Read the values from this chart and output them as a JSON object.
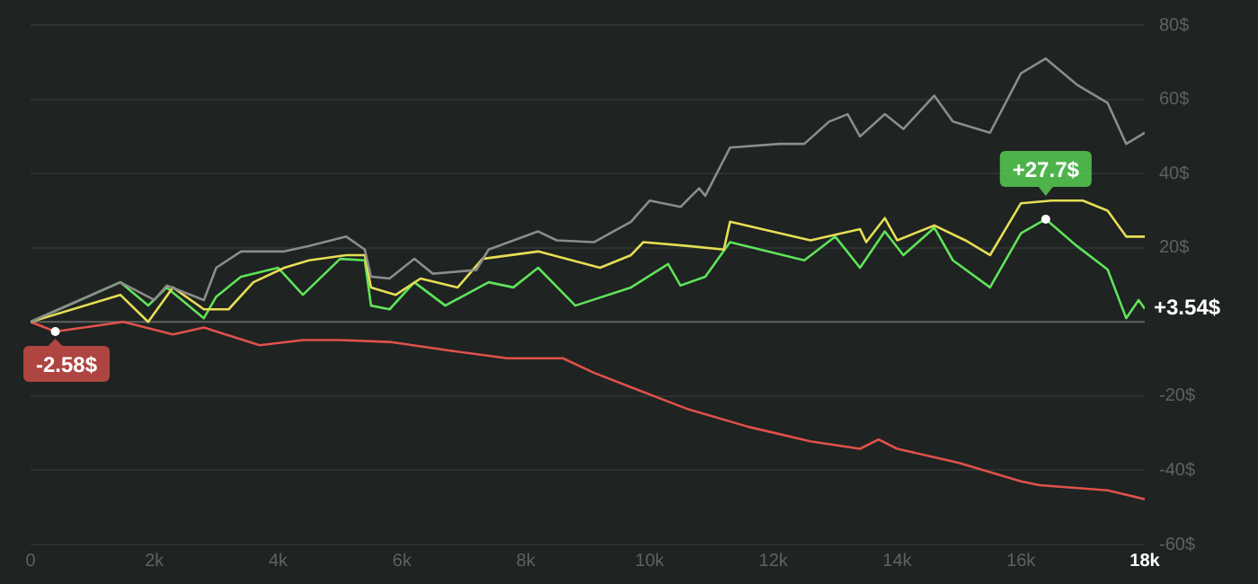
{
  "chart_data": {
    "type": "line",
    "xlim": [
      0,
      18000
    ],
    "ylim": [
      -60,
      80
    ],
    "xticks": [
      0,
      {
        "value": 2000,
        "label": "2k"
      },
      {
        "value": 4000,
        "label": "4k"
      },
      {
        "value": 6000,
        "label": "6k"
      },
      {
        "value": 8000,
        "label": "8k"
      },
      {
        "value": 10000,
        "label": "10k"
      },
      {
        "value": 12000,
        "label": "12k"
      },
      {
        "value": 14000,
        "label": "14k"
      },
      {
        "value": 16000,
        "label": "16k"
      },
      {
        "value": 18000,
        "label": "18k"
      }
    ],
    "yticks": [
      {
        "value": -60,
        "label": "-60$"
      },
      {
        "value": -40,
        "label": "-40$"
      },
      {
        "value": -20,
        "label": "-20$"
      },
      {
        "value": 0,
        "label": null
      },
      {
        "value": 20,
        "label": "20$"
      },
      {
        "value": 40,
        "label": "40$"
      },
      {
        "value": 60,
        "label": "60$"
      },
      {
        "value": 80,
        "label": "80$"
      }
    ],
    "grid": "y",
    "legend": false,
    "marker": "none",
    "line_style": "solid",
    "ref_lines": [
      {
        "axis": "y",
        "value": 0,
        "color": "#5b605e"
      }
    ],
    "annotations": [
      {
        "text": "-2.58$",
        "x": 400,
        "y": -2.58
      },
      {
        "text": "+27.7$",
        "x": 16400,
        "y": 27.7
      },
      {
        "text": "+3.54$",
        "x": 18000,
        "y": 3.54
      }
    ],
    "series": [
      {
        "color": "#8c8c8c",
        "x": [
          0,
          1450,
          2000,
          2200,
          2800,
          3000,
          3400,
          4100,
          4500,
          5100,
          5400,
          5500,
          5800,
          6200,
          6500,
          7200,
          7400,
          8200,
          8500,
          9100,
          9700,
          10000,
          10500,
          10800,
          10900,
          11300,
          12100,
          12500,
          12900,
          13200,
          13400,
          13800,
          14100,
          14600,
          14900,
          15500,
          16000,
          16400,
          16900,
          17400,
          17700,
          18000
        ],
        "values": [
          0,
          10.7,
          5.9,
          9.8,
          5.9,
          14.6,
          19,
          19,
          20.5,
          23,
          19.5,
          12.2,
          11.7,
          17,
          13,
          14,
          19.5,
          24.4,
          22,
          21.5,
          27,
          32.7,
          31,
          36,
          34,
          47,
          48,
          48,
          54,
          56,
          50,
          56,
          52,
          61,
          54,
          51,
          67,
          71,
          64,
          59,
          48,
          51
        ]
      },
      {
        "color": "#e6de55",
        "x": [
          0,
          1450,
          1900,
          2300,
          2800,
          3200,
          3600,
          4100,
          4500,
          5100,
          5400,
          5500,
          5900,
          6300,
          6900,
          7300,
          8200,
          9200,
          9700,
          9900,
          10600,
          11200,
          11300,
          12600,
          13400,
          13500,
          13800,
          14000,
          14600,
          15100,
          15500,
          16000,
          16500,
          17000,
          17400,
          17700,
          18000
        ],
        "values": [
          0,
          7.3,
          0,
          9.3,
          3.4,
          3.4,
          10.7,
          14.6,
          16.6,
          18,
          18,
          9.3,
          7.3,
          11.7,
          9.3,
          17,
          19,
          14.6,
          18,
          21.5,
          20.5,
          19.5,
          27,
          22,
          25,
          21.5,
          28,
          22,
          26,
          22,
          18,
          32,
          32.7,
          32.7,
          30,
          23,
          23
        ]
      },
      {
        "color": "#5fe35a",
        "x": [
          0,
          1450,
          1900,
          2200,
          2800,
          3000,
          3400,
          4000,
          4400,
          5000,
          5400,
          5500,
          5800,
          6200,
          6700,
          7400,
          7800,
          8200,
          8800,
          9700,
          10300,
          10500,
          10900,
          11300,
          12500,
          13000,
          13400,
          13800,
          14100,
          14600,
          14900,
          15500,
          16000,
          16400,
          16900,
          17400,
          17700,
          17900,
          18000
        ],
        "values": [
          0,
          10.7,
          4.4,
          9.3,
          1,
          6.8,
          12.2,
          14.6,
          7.3,
          17,
          16.6,
          4.4,
          3.4,
          10.7,
          4.4,
          10.7,
          9.3,
          14.6,
          4.4,
          9.3,
          15.6,
          9.8,
          12.2,
          21.5,
          16.6,
          23,
          14.6,
          24.4,
          18,
          25.4,
          16.6,
          9.3,
          23.9,
          27.7,
          20.5,
          14.1,
          1,
          5.9,
          3.54
        ]
      },
      {
        "color": "#e0514b",
        "x": [
          0,
          400,
          1500,
          2300,
          2800,
          3700,
          4400,
          5000,
          5800,
          6800,
          7700,
          8600,
          9100,
          9700,
          10600,
          11600,
          12600,
          13400,
          13700,
          14000,
          15000,
          16000,
          16300,
          17400,
          18000
        ],
        "values": [
          0,
          -2.58,
          0,
          -3.4,
          -1.5,
          -6.3,
          -4.9,
          -4.9,
          -5.4,
          -7.8,
          -9.8,
          -9.8,
          -13.7,
          -17.6,
          -23.4,
          -28.3,
          -32.2,
          -34.2,
          -31.7,
          -34.2,
          -38,
          -43,
          -44,
          -45.4,
          -47.8
        ]
      }
    ]
  }
}
